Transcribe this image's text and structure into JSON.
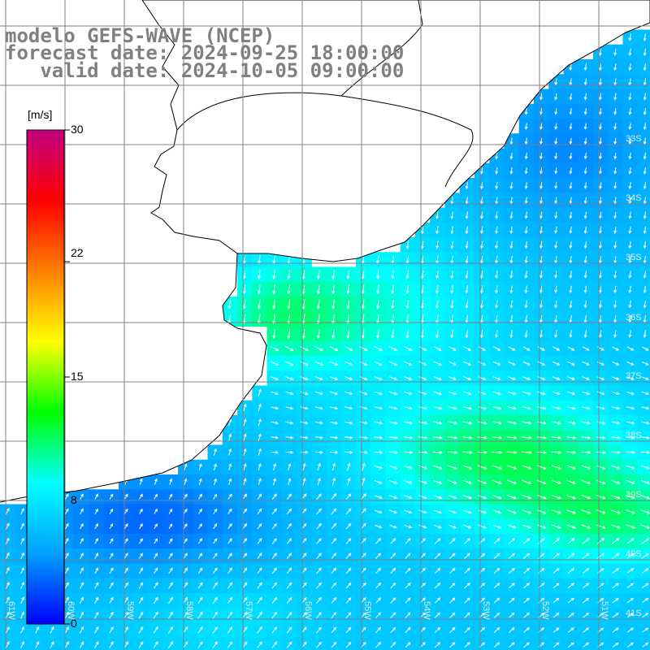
{
  "title": {
    "line1": "modelo GEFS-WAVE (NCEP)",
    "line2": "forecast date: 2024-09-25 18:00:00",
    "line3": "   valid date: 2024-10-05 09:00:00"
  },
  "colorbar": {
    "unit": "[m/s]",
    "ticks": [
      "30",
      "22",
      "15",
      "8",
      "0"
    ],
    "tick_values": [
      30,
      22,
      15,
      8,
      0
    ],
    "min": 0,
    "max": 30,
    "colors": [
      "#0000ff",
      "#00a0ff",
      "#00ffff",
      "#00ff00",
      "#ffff00",
      "#ff8000",
      "#ff0000",
      "#c00080"
    ]
  },
  "map": {
    "lat_labels": [
      "33S",
      "34S",
      "35S",
      "36S",
      "37S",
      "38S",
      "39S",
      "40S",
      "41S"
    ],
    "lon_labels": [
      "61W",
      "60W",
      "59W",
      "58W",
      "57W",
      "56W",
      "55W",
      "54W",
      "53W",
      "52W",
      "51W"
    ],
    "land_color": "#ffffff",
    "grid_color": "#808080",
    "arrow_color": "#ffffff"
  }
}
